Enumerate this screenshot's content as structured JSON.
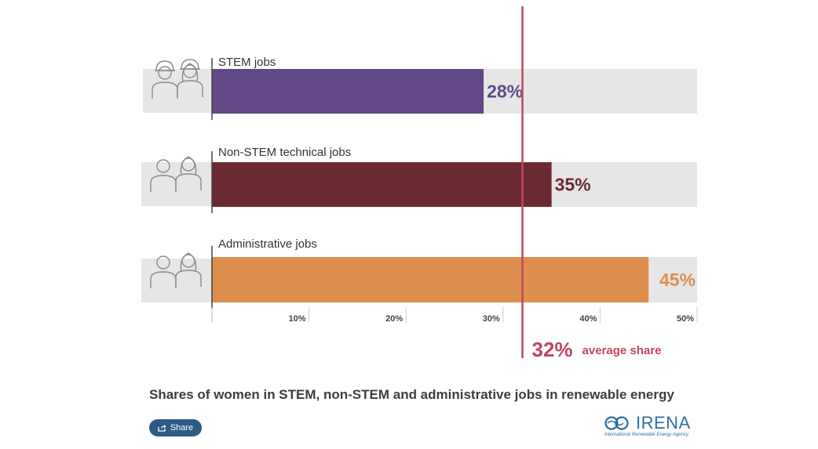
{
  "chart_data": {
    "type": "bar",
    "orientation": "horizontal",
    "categories": [
      "STEM jobs",
      "Non-STEM technical jobs",
      "Administrative jobs"
    ],
    "values": [
      28,
      35,
      45
    ],
    "value_labels": [
      "28%",
      "35%",
      "45%"
    ],
    "colors": [
      "#624985",
      "#6b2a31",
      "#de8e4c"
    ],
    "xlim": [
      0,
      50
    ],
    "xticks": [
      10,
      20,
      30,
      40,
      50
    ],
    "xtick_labels": [
      "10%",
      "20%",
      "30%",
      "40%",
      "50%"
    ],
    "reference_line": {
      "value": 32,
      "label_value": "32%",
      "label_text": "average share",
      "color": "#c1475f"
    },
    "track_color": "#e6e6e6",
    "icons": [
      "male-and-female-engineer-icon",
      "male-and-female-technician-icon",
      "male-and-female-office-worker-icon"
    ],
    "grid": false,
    "title": "Shares of women in STEM, non-STEM and administrative jobs in renewable energy"
  },
  "footer": {
    "share_label": "Share",
    "share_icon": "share-icon"
  },
  "logo": {
    "name": "IRENA",
    "subtitle": "International Renewable Energy Agency",
    "color": "#2d6ea3"
  }
}
